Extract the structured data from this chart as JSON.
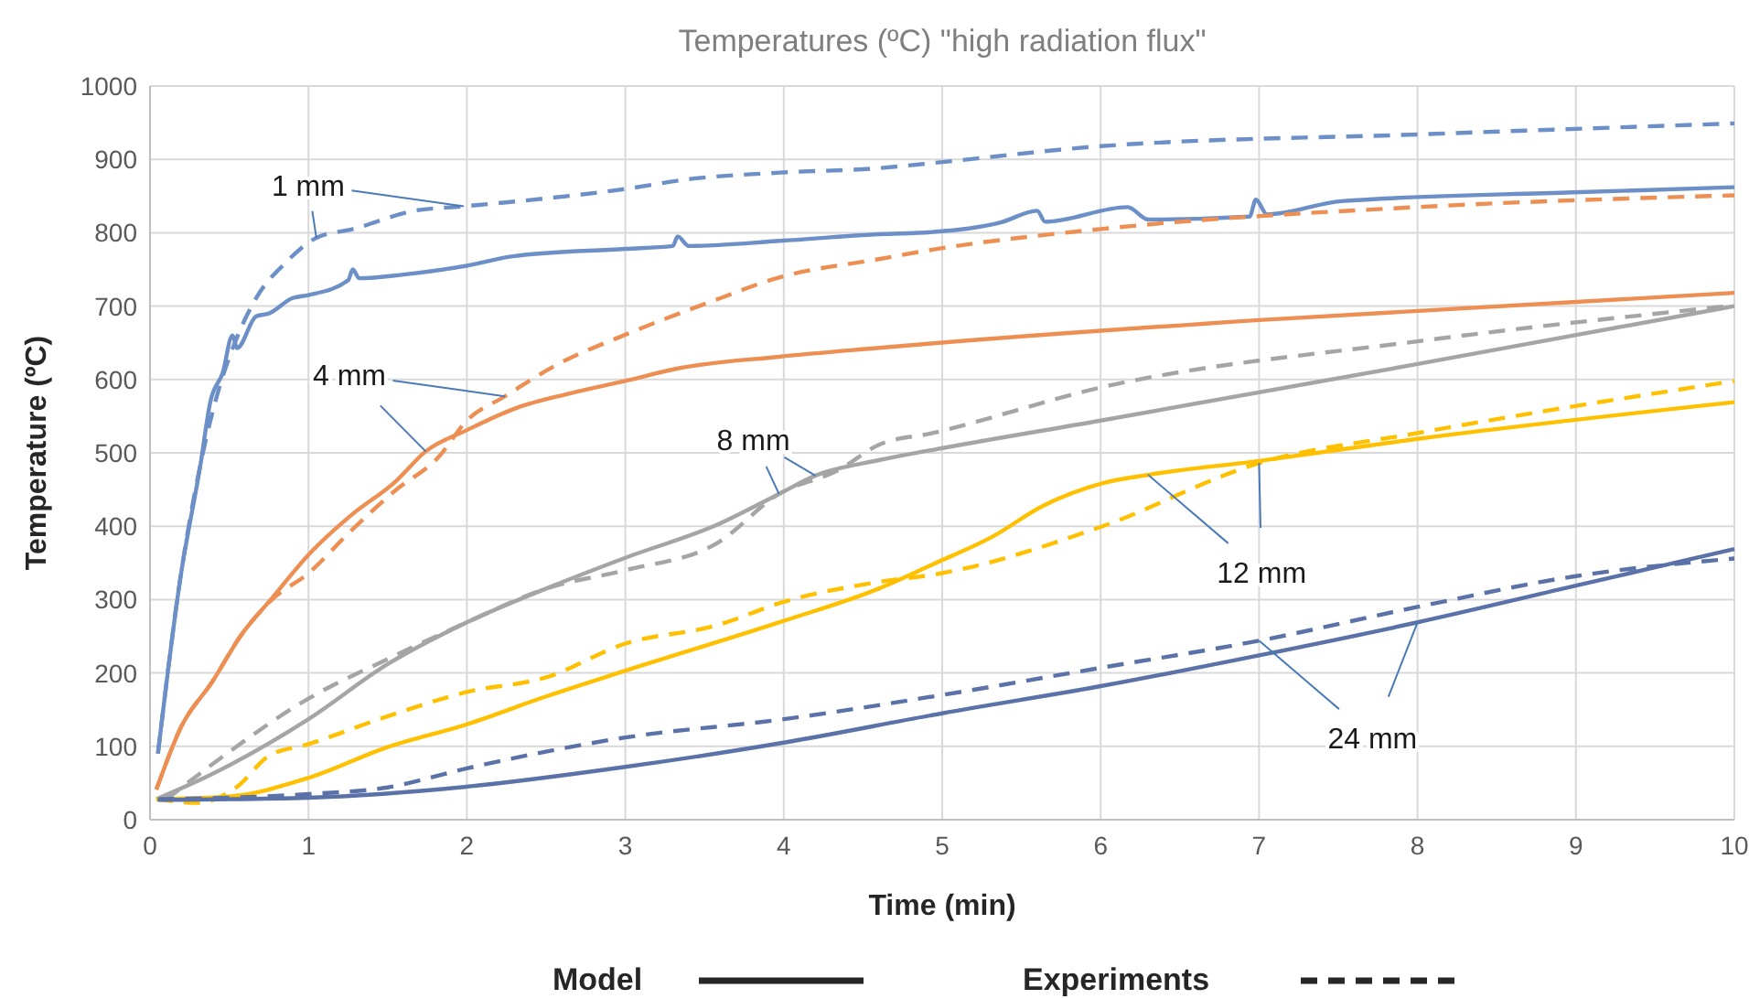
{
  "chart_data": {
    "type": "line",
    "title": "Temperatures (ºC) \"high radiation flux\"",
    "xlabel": "Time (min)",
    "ylabel": "Temperature (ºC)",
    "xlim": [
      0,
      10
    ],
    "xticks": [
      0,
      1,
      2,
      3,
      4,
      5,
      6,
      7,
      8,
      9,
      10
    ],
    "ylim": [
      0,
      1000
    ],
    "yticks": [
      0,
      100,
      200,
      300,
      400,
      500,
      600,
      700,
      800,
      900,
      1000
    ],
    "grid": true,
    "marker": "none",
    "series": [
      {
        "color": "#6b8fc6",
        "line_style": "solid",
        "x": [
          0.05,
          0.19,
          0.32,
          0.38,
          0.46,
          0.52,
          0.55,
          0.67,
          0.75,
          0.9,
          1.0,
          1.25,
          1.28,
          1.32,
          1.6,
          2.0,
          2.29,
          3.0,
          3.3,
          3.33,
          3.4,
          3.98,
          4.6,
          4.94,
          5.37,
          5.6,
          5.65,
          6.17,
          6.3,
          6.94,
          6.98,
          7.05,
          7.52,
          8.98,
          10
        ],
        "values": [
          90,
          327,
          486,
          569,
          610,
          660,
          643,
          686,
          690,
          711,
          715,
          735,
          750,
          738,
          743,
          755,
          768,
          778,
          782,
          795,
          782,
          789,
          798,
          801,
          814,
          830,
          815,
          835,
          818,
          822,
          845,
          825,
          843,
          855,
          862
        ]
      },
      {
        "color": "#6b8fc6",
        "line_style": "dashed",
        "x": [
          0.05,
          0.19,
          0.32,
          0.4,
          0.57,
          0.67,
          0.86,
          1.05,
          1.28,
          1.67,
          1.98,
          3.01,
          3.4,
          3.98,
          4.6,
          4.94,
          6.0,
          8.0,
          10
        ],
        "values": [
          90,
          327,
          486,
          560,
          668,
          711,
          760,
          793,
          805,
          830,
          836,
          860,
          873,
          882,
          888,
          895,
          918,
          934,
          949
        ]
      },
      {
        "color": "#ed8f52",
        "line_style": "solid",
        "x": [
          0.04,
          0.2,
          0.39,
          0.58,
          0.77,
          1.0,
          1.27,
          1.55,
          1.74,
          2.0,
          2.31,
          2.65,
          3.0,
          3.33,
          3.97,
          4.6,
          4.93,
          7.0,
          10
        ],
        "values": [
          41,
          128,
          187,
          253,
          302,
          361,
          415,
          461,
          502,
          531,
          561,
          581,
          598,
          615,
          631,
          643,
          649,
          681,
          718
        ]
      },
      {
        "color": "#ed8f52",
        "line_style": "dashed",
        "x": [
          0.04,
          0.2,
          0.39,
          0.58,
          0.77,
          1.0,
          1.27,
          1.55,
          1.82,
          2.0,
          2.24,
          2.55,
          3.0,
          3.54,
          3.97,
          4.6,
          4.94,
          6.0,
          8.0,
          10
        ],
        "values": [
          41,
          128,
          187,
          253,
          300,
          336,
          394,
          449,
          494,
          544,
          577,
          618,
          661,
          706,
          739,
          764,
          777,
          805,
          835,
          851
        ]
      },
      {
        "color": "#a5a5a5",
        "line_style": "solid",
        "x": [
          0.04,
          0.39,
          1.0,
          1.5,
          2.0,
          2.5,
          3.0,
          3.58,
          3.97,
          4.2,
          4.6,
          4.94,
          6.0,
          8.0,
          10
        ],
        "values": [
          28,
          62,
          137,
          212,
          269,
          315,
          357,
          402,
          444,
          469,
          490,
          504,
          544,
          621,
          700
        ]
      },
      {
        "color": "#a5a5a5",
        "line_style": "dashed",
        "x": [
          0.1,
          0.39,
          1.0,
          1.5,
          2.0,
          2.5,
          3.0,
          3.58,
          3.97,
          4.35,
          4.6,
          4.94,
          6.0,
          8.0,
          10
        ],
        "values": [
          27,
          75,
          165,
          219,
          269,
          315,
          340,
          377,
          444,
          477,
          511,
          527,
          589,
          652,
          701
        ]
      },
      {
        "color": "#ffc000",
        "line_style": "solid",
        "x": [
          0.04,
          0.51,
          1.0,
          1.5,
          2.0,
          2.5,
          3.0,
          4.0,
          4.6,
          4.94,
          5.32,
          5.63,
          6.02,
          6.3,
          7.0,
          8.0,
          10
        ],
        "values": [
          28,
          32,
          57,
          99,
          130,
          168,
          203,
          271,
          315,
          348,
          386,
          427,
          459,
          470,
          489,
          519,
          569
        ]
      },
      {
        "color": "#ffc000",
        "line_style": "dashed",
        "x": [
          0.04,
          0.3,
          0.55,
          0.75,
          1.0,
          1.5,
          2.0,
          2.5,
          3.0,
          3.58,
          4.0,
          4.6,
          5.0,
          6.0,
          7.0,
          8.0,
          10
        ],
        "values": [
          28,
          23,
          45,
          87,
          103,
          141,
          174,
          194,
          240,
          265,
          297,
          324,
          336,
          399,
          486,
          527,
          598
        ]
      },
      {
        "color": "#5a72a8",
        "line_style": "solid",
        "x": [
          0.05,
          1.0,
          2.0,
          3.0,
          4.0,
          5.0,
          6.0,
          7.0,
          8.0,
          9.0,
          10
        ],
        "values": [
          27,
          30,
          45,
          72,
          105,
          145,
          182,
          224,
          269,
          319,
          369
        ]
      },
      {
        "color": "#5a72a8",
        "line_style": "dashed",
        "x": [
          0.05,
          1.0,
          1.5,
          2.0,
          3.0,
          4.0,
          5.0,
          6.0,
          7.0,
          8.0,
          9.0,
          10
        ],
        "values": [
          28,
          35,
          44,
          70,
          112,
          137,
          170,
          207,
          244,
          290,
          332,
          356
        ]
      }
    ],
    "annotations": [
      {
        "text": "1 mm",
        "x": 1.98,
        "y": 836
      },
      {
        "text": "4 mm",
        "x": 2.24,
        "y": 577
      },
      {
        "text": "8 mm",
        "x": 3.97,
        "y": 444
      },
      {
        "text": "12 mm",
        "x": 6.3,
        "y": 470
      },
      {
        "text": "24 mm",
        "x": 7.0,
        "y": 244
      },
      "Model",
      "Experiments"
    ]
  }
}
